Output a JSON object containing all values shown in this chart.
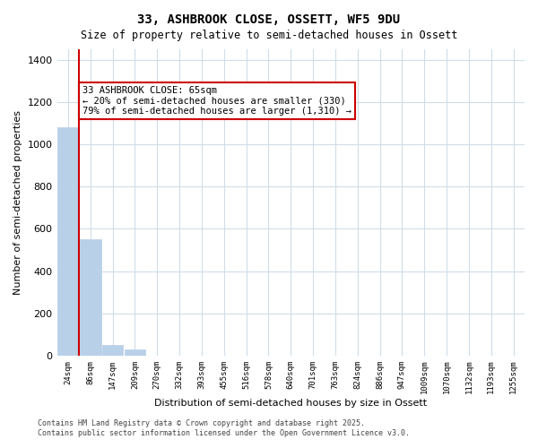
{
  "title_line1": "33, ASHBROOK CLOSE, OSSETT, WF5 9DU",
  "title_line2": "Size of property relative to semi-detached houses in Ossett",
  "xlabel": "Distribution of semi-detached houses by size in Ossett",
  "ylabel": "Number of semi-detached properties",
  "categories": [
    "24sqm",
    "86sqm",
    "147sqm",
    "209sqm",
    "270sqm",
    "332sqm",
    "393sqm",
    "455sqm",
    "516sqm",
    "578sqm",
    "640sqm",
    "701sqm",
    "763sqm",
    "824sqm",
    "886sqm",
    "947sqm",
    "1009sqm",
    "1070sqm",
    "1132sqm",
    "1193sqm",
    "1255sqm"
  ],
  "values": [
    1080,
    550,
    50,
    30,
    0,
    0,
    0,
    0,
    0,
    0,
    0,
    0,
    0,
    0,
    0,
    0,
    0,
    0,
    0,
    0,
    0
  ],
  "bar_color": "#b8d0e8",
  "bar_edge_color": "#b8d0e8",
  "property_line_x": 1,
  "property_line_color": "#cc0000",
  "annotation_title": "33 ASHBROOK CLOSE: 65sqm",
  "annotation_line2": "← 20% of semi-detached houses are smaller (330)",
  "annotation_line3": "79% of semi-detached houses are larger (1,310) →",
  "annotation_box_color": "#cc0000",
  "annotation_bg": "#ffffff",
  "ylim": [
    0,
    1450
  ],
  "yticks": [
    0,
    200,
    400,
    600,
    800,
    1000,
    1200,
    1400
  ],
  "background_color": "#ffffff",
  "grid_color": "#d0dde8",
  "footnote_line1": "Contains HM Land Registry data © Crown copyright and database right 2025.",
  "footnote_line2": "Contains public sector information licensed under the Open Government Licence v3.0."
}
